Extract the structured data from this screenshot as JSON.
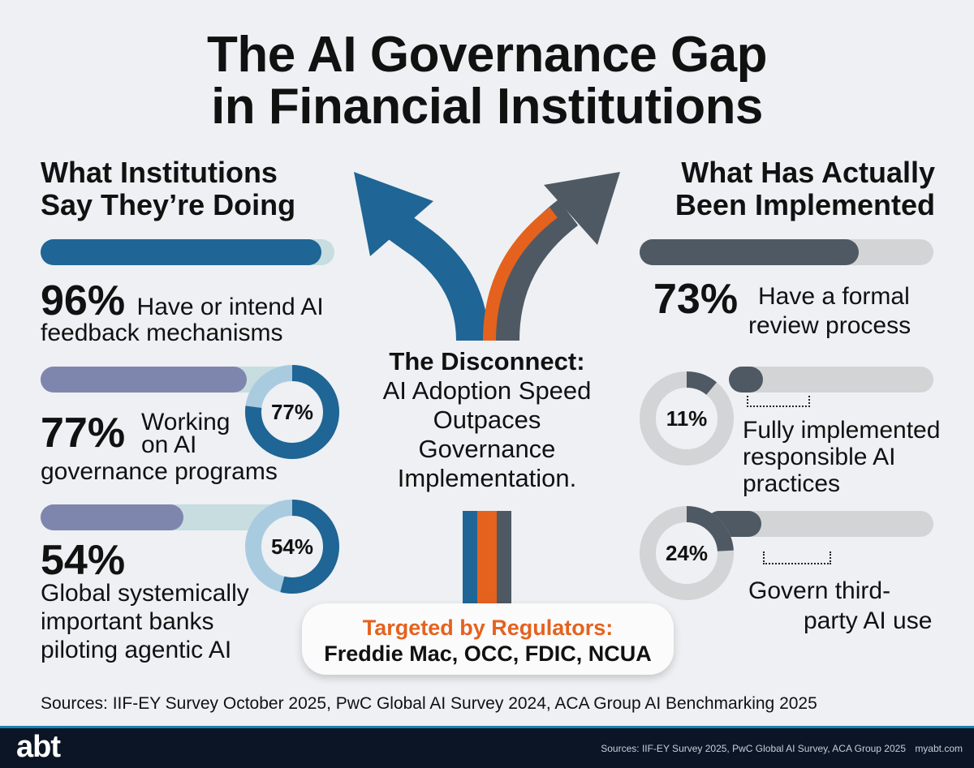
{
  "title": {
    "line1": "The AI Governance Gap",
    "line2": "in Financial Institutions"
  },
  "left": {
    "heading_line1": "What Institutions",
    "heading_line2": "Say They’re Doing",
    "stats": [
      {
        "pct": "96%",
        "line1": "Have or intend AI",
        "line2": "feedback mechanisms",
        "level": 0.96
      },
      {
        "pct": "77%",
        "line1": "Working",
        "line2": "on AI",
        "line3": "governance programs",
        "ring": "77%",
        "level": 0.77
      },
      {
        "pct": "54%",
        "line1": "Global systemically",
        "line2": "important banks",
        "line3": "piloting agentic AI",
        "ring": "54%",
        "level": 0.54
      }
    ]
  },
  "right": {
    "heading_line1": "What Has Actually",
    "heading_line2": "Been Implemented",
    "stats": [
      {
        "pct": "73%",
        "line1": "Have a formal",
        "line2": "review process",
        "level": 0.73
      },
      {
        "ring": "11%",
        "line1": "Fully implemented",
        "line2": "responsible AI",
        "line3": "practices",
        "level": 0.11
      },
      {
        "ring": "24%",
        "line1": "Govern third-",
        "line2": "party AI use",
        "level": 0.24
      }
    ]
  },
  "center": {
    "heading": "The Disconnect:",
    "line1": "AI Adoption Speed",
    "line2": "Outpaces",
    "line3": "Governance",
    "line4": "Implementation."
  },
  "regulators": {
    "heading": "Targeted by Regulators:",
    "body": "Freddie Mac, OCC, FDIC, NCUA"
  },
  "sources": "Sources: IIF-EY Survey October 2025, PwC Global AI Survey 2024, ACA Group AI Benchmarking 2025",
  "footer": {
    "logo": "abt",
    "sources": "Sources: IIF-EY Survey 2025, PwC Global AI Survey, ACA Group 2025",
    "site": "myabt.com"
  },
  "colors": {
    "blue": "#1f6595",
    "orange": "#e4621e",
    "slate": "#4f5963",
    "lavender": "#7f86ad",
    "light_teal": "#c7dde0",
    "grey_track": "#d3d4d6"
  }
}
